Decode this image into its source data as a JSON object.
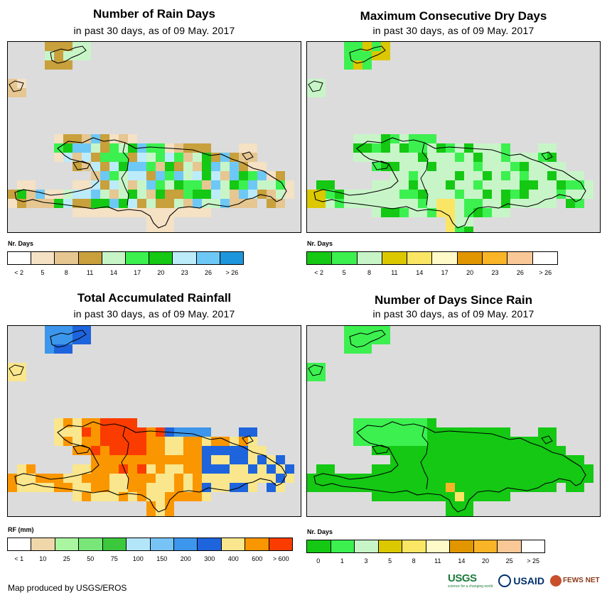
{
  "panels": [
    {
      "id": "rain-days",
      "title": "Number of Rain Days",
      "subtitle": "in past 30 days, as of 09 May. 2017",
      "legend": {
        "label": "Nr. Days",
        "colors": [
          "#ffffff",
          "#f5e1c4",
          "#e6c691",
          "#c8a03c",
          "#c8f5c8",
          "#3cf050",
          "#14c814",
          "#bcebfa",
          "#6ec8f5",
          "#1e96dc"
        ],
        "ticks": [
          "< 2",
          "5",
          "8",
          "11",
          "14",
          "17",
          "20",
          "23",
          "26",
          "> 26"
        ]
      },
      "grid": [
        "................................",
        "...CC..............................",
        "...3C.",
        ".C",
        ".CC",
        "",
        "",
        "......22.33......",
        "......2222343444....",
        ".........34556677654.2.",
        "........446554745444.C.",
        ".....4.4466564668655444...",
        "....4.4444578856664.4444.4.",
        ".C...55556788776654644554",
        "CC..554556666665765456.4C.",
        "C..44.4.444443454.44444.C.",
        ".C...4444.44.3.4...3..C",
        "..............1.1",
        "..............22",
        "...............22"
      ]
    },
    {
      "id": "dry-days",
      "title": "Maximum Consecutive Dry Days",
      "subtitle": "in past 30 days, as of 09 May. 2017",
      "legend": {
        "label": "Nr. Days",
        "colors": [
          "#14c814",
          "#3cf050",
          "#c8f5c8",
          "#dcc800",
          "#fae664",
          "#fffac8",
          "#e19600",
          "#fab428",
          "#fac896",
          "#ffffff"
        ],
        "ticks": [
          "< 2",
          "5",
          "8",
          "11",
          "14",
          "17",
          "20",
          "23",
          "26",
          "> 26"
        ]
      },
      "grid": [],
      "fill": "#c8f5c8"
    },
    {
      "id": "total-rainfall",
      "title": "Total Accumulated Rainfall",
      "subtitle": "in past 30 days, as of 09 May. 2017",
      "legend": {
        "label": "RF (mm)",
        "colors": [
          "#ffffff",
          "#f0d7aa",
          "#aaf5a0",
          "#78e678",
          "#3cc83c",
          "#b4e6fa",
          "#78c3f5",
          "#3c96eb",
          "#1e64dc",
          "#fae68c",
          "#fa9600",
          "#fa3c00"
        ],
        "ticks": [
          "< 1",
          "10",
          "25",
          "50",
          "75",
          "100",
          "150",
          "200",
          "300",
          "400",
          "600",
          "> 600"
        ]
      },
      "grid": []
    },
    {
      "id": "days-since-rain",
      "title": "Number of Days Since Rain",
      "subtitle": "in past 30 days, as of 09 May. 2017",
      "legend": {
        "label": "Nr. Days",
        "colors": [
          "#14c814",
          "#3cf050",
          "#c8f5c8",
          "#dcc800",
          "#fae664",
          "#fffac8",
          "#e19600",
          "#fab428",
          "#fac896",
          "#ffffff"
        ],
        "ticks": [
          "0",
          "1",
          "3",
          "5",
          "8",
          "11",
          "14",
          "20",
          "25",
          "> 25"
        ]
      },
      "grid": []
    }
  ],
  "footer": {
    "credit": "Map produced by USGS/EROS"
  },
  "logos": {
    "usgs": "USGS",
    "usgs_tagline": "science for a changing world",
    "usaid": "USAID",
    "fews": "FEWS NET"
  }
}
